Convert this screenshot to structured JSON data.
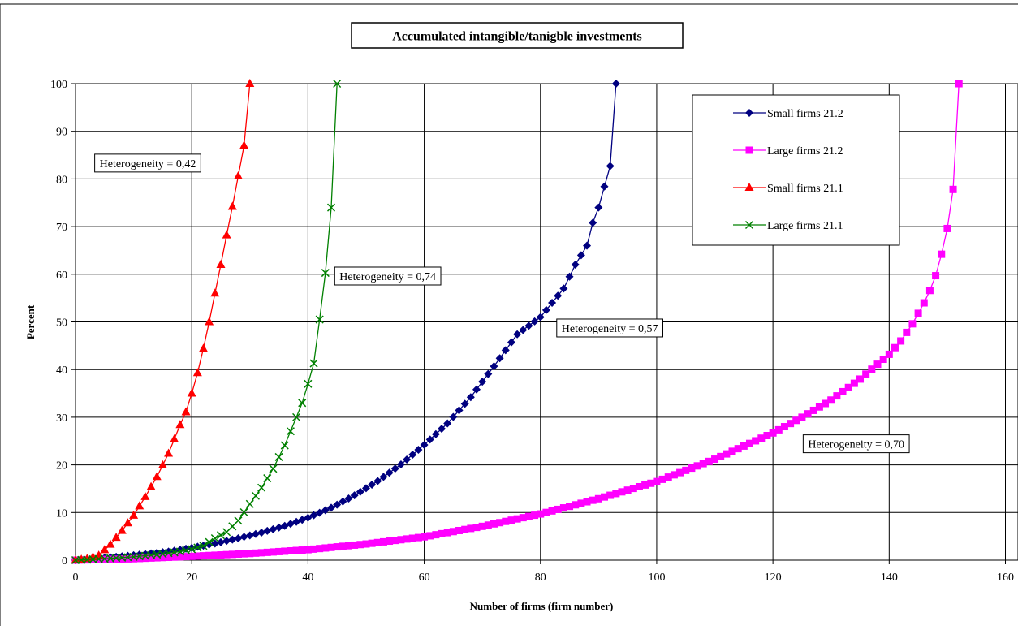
{
  "chart_data": {
    "type": "line",
    "title": "Accumulated intangible/tanigble investments",
    "xlabel": "Number of firms (firm number)",
    "ylabel": "Percent",
    "xlim": [
      0,
      160
    ],
    "ylim": [
      0,
      100
    ],
    "x_ticks": [
      0,
      20,
      40,
      60,
      80,
      100,
      120,
      140,
      160
    ],
    "x_tick_labels": [
      "0",
      "20",
      "40",
      "60",
      "80",
      "100",
      "120",
      "140",
      "160"
    ],
    "y_ticks": [
      0,
      10,
      20,
      30,
      40,
      50,
      60,
      70,
      80,
      90,
      100
    ],
    "y_tick_labels": [
      "0",
      "10",
      "20",
      "30",
      "40",
      "50",
      "60",
      "70",
      "80",
      "90",
      "100"
    ],
    "grid": true,
    "legend_position": "top-right",
    "series": [
      {
        "name": "Small firms 21.2",
        "color": "#000080",
        "marker": "diamond",
        "x": [
          0,
          4,
          8,
          12,
          16,
          20,
          24,
          28,
          32,
          36,
          40,
          44,
          48,
          52,
          56,
          60,
          64,
          68,
          72,
          76,
          80,
          82,
          84,
          86,
          88,
          89,
          90,
          91,
          92,
          93
        ],
        "y": [
          0,
          0.4,
          0.8,
          1.3,
          1.8,
          2.6,
          3.5,
          4.6,
          5.8,
          7.2,
          8.9,
          11,
          13.6,
          16.6,
          20.1,
          24.2,
          28.7,
          34.2,
          40.7,
          47.4,
          51,
          54,
          57,
          62,
          66,
          70.8,
          74,
          78.4,
          82.7,
          100
        ]
      },
      {
        "name": "Large firms 21.2",
        "color": "#ff00ff",
        "marker": "square",
        "x": [
          0,
          10,
          20,
          30,
          40,
          50,
          60,
          70,
          80,
          90,
          100,
          110,
          120,
          125,
          130,
          135,
          140,
          142,
          144,
          146,
          147,
          148,
          149,
          150,
          151,
          152
        ],
        "y": [
          0,
          0.3,
          0.8,
          1.4,
          2.2,
          3.4,
          4.9,
          7.1,
          9.7,
          12.9,
          16.5,
          21.2,
          26.7,
          30,
          33.6,
          38,
          43.2,
          46,
          49.6,
          54,
          56.6,
          59.7,
          64.2,
          69.6,
          77.8,
          100
        ]
      },
      {
        "name": "Small firms 21.1",
        "color": "#ff0000",
        "marker": "triangle",
        "x": [
          0,
          2,
          4,
          6,
          8,
          10,
          12,
          14,
          16,
          18,
          19,
          20,
          21,
          22,
          23,
          24,
          25,
          26,
          27,
          28,
          29,
          30
        ],
        "y": [
          0,
          0.3,
          1,
          3.3,
          6.2,
          9.4,
          13.3,
          17.5,
          22.4,
          28.4,
          31.1,
          35,
          39.3,
          44.4,
          50,
          56,
          62,
          68.2,
          74.2,
          80.6,
          87,
          100
        ]
      },
      {
        "name": "Large firms 21.1",
        "color": "#008000",
        "marker": "x",
        "x": [
          0,
          5,
          10,
          15,
          18,
          20,
          22,
          24,
          26,
          28,
          30,
          32,
          34,
          36,
          38,
          39,
          40,
          41,
          42,
          43,
          44,
          45
        ],
        "y": [
          0,
          0.3,
          0.7,
          1.3,
          1.8,
          2.3,
          3,
          4.6,
          5.9,
          8.3,
          11.8,
          15.2,
          19.2,
          24.1,
          30,
          33,
          37,
          41.3,
          50.5,
          60.3,
          74,
          100
        ]
      }
    ],
    "annotations": [
      {
        "text": "Heterogeneity = 0,42",
        "x": 3.3,
        "y": 85.2
      },
      {
        "text": "Heterogeneity = 0,74",
        "x": 44.6,
        "y": 61.5
      },
      {
        "text": "Heterogeneity = 0,57",
        "x": 82.8,
        "y": 50.6
      },
      {
        "text": "Heterogeneity = 0,70",
        "x": 125.2,
        "y": 26.3
      }
    ]
  }
}
